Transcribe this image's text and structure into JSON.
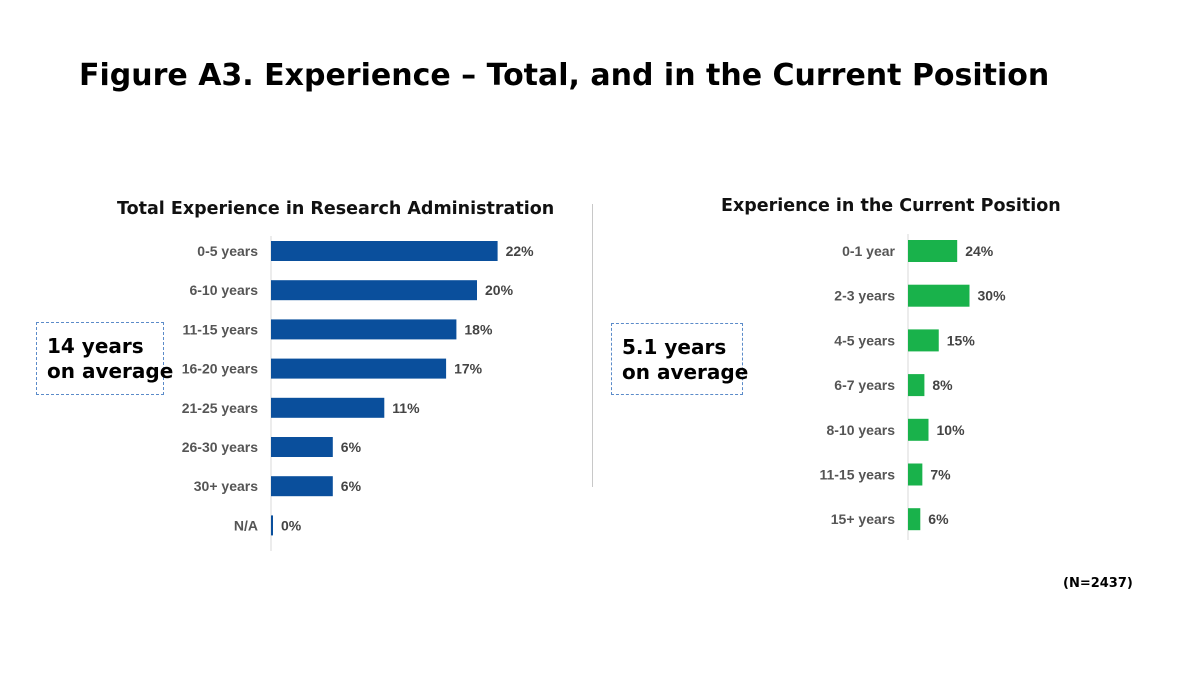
{
  "figure_title": "Figure A3. Experience – Total, and in the Current Position",
  "note": "(N=2437)",
  "colors": {
    "left_bar": "#0a4f9c",
    "right_bar": "#19b24b",
    "callout_border": "#5b8bc9"
  },
  "chart_data": [
    {
      "type": "bar",
      "orientation": "horizontal",
      "title": "Total Experience in Research Administration",
      "categories": [
        "0-5 years",
        "6-10 years",
        "11-15 years",
        "16-20 years",
        "21-25 years",
        "26-30 years",
        "30+ years",
        "N/A"
      ],
      "values": [
        22,
        20,
        18,
        17,
        11,
        6,
        6,
        0
      ],
      "value_labels": [
        "22%",
        "20%",
        "18%",
        "17%",
        "11%",
        "6%",
        "6%",
        "0%"
      ],
      "unit": "%",
      "callout": [
        "14 years",
        "on average"
      ]
    },
    {
      "type": "bar",
      "orientation": "horizontal",
      "title": "Experience in the Current Position",
      "categories": [
        "0-1 year",
        "2-3 years",
        "4-5 years",
        "6-7 years",
        "8-10 years",
        "11-15 years",
        "15+ years"
      ],
      "values": [
        24,
        30,
        15,
        8,
        10,
        7,
        6
      ],
      "value_labels": [
        "24%",
        "30%",
        "15%",
        "8%",
        "10%",
        "7%",
        "6%"
      ],
      "unit": "%",
      "callout": [
        "5.1 years",
        "on average"
      ]
    }
  ]
}
